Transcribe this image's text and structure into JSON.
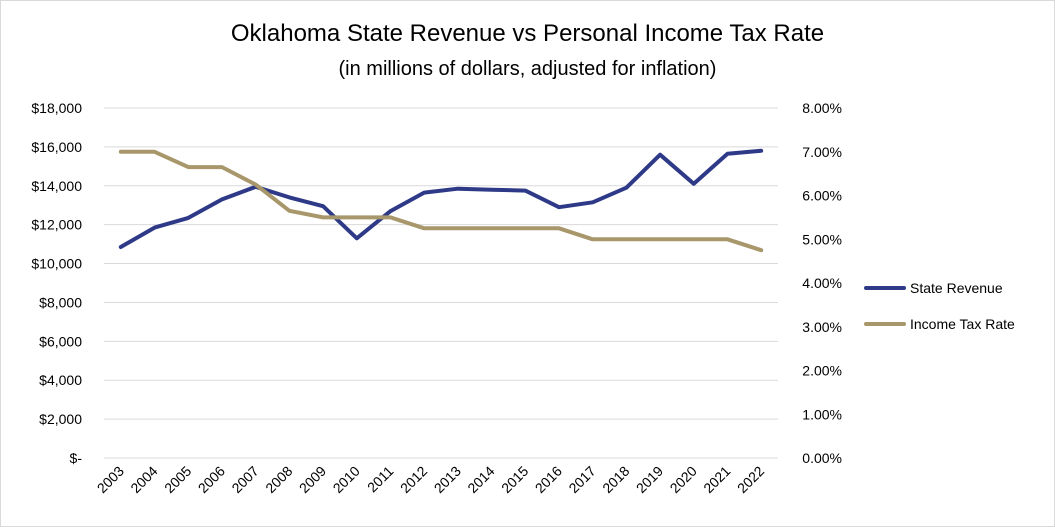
{
  "chart_data": {
    "type": "line",
    "title": "Oklahoma State Revenue vs Personal Income Tax Rate",
    "subtitle": "(in millions of dollars, adjusted for inflation)",
    "categories": [
      "2003",
      "2004",
      "2005",
      "2006",
      "2007",
      "2008",
      "2009",
      "2010",
      "2011",
      "2012",
      "2013",
      "2014",
      "2015",
      "2016",
      "2017",
      "2018",
      "2019",
      "2020",
      "2021",
      "2022"
    ],
    "series": [
      {
        "name": "State Revenue",
        "axis": "left",
        "color": "#2e3a87",
        "values": [
          10850,
          11850,
          12350,
          13300,
          13950,
          13400,
          12950,
          11300,
          12700,
          13650,
          13850,
          13800,
          13750,
          12900,
          13150,
          13900,
          15600,
          14100,
          15650,
          15800
        ]
      },
      {
        "name": "Income Tax Rate",
        "axis": "right",
        "color": "#a8976a",
        "values": [
          7.0,
          7.0,
          6.65,
          6.65,
          6.25,
          5.65,
          5.5,
          5.5,
          5.5,
          5.25,
          5.25,
          5.25,
          5.25,
          5.25,
          5.0,
          5.0,
          5.0,
          5.0,
          5.0,
          4.75
        ]
      }
    ],
    "y_left": {
      "ylim": [
        0,
        18000
      ],
      "tick_labels": [
        "$-",
        "$2,000",
        "$4,000",
        "$6,000",
        "$8,000",
        "$10,000",
        "$12,000",
        "$14,000",
        "$16,000",
        "$18,000"
      ]
    },
    "y_right": {
      "ylim": [
        0,
        8
      ],
      "tick_labels": [
        "0.00%",
        "1.00%",
        "2.00%",
        "3.00%",
        "4.00%",
        "5.00%",
        "6.00%",
        "7.00%",
        "8.00%"
      ]
    },
    "grid": true,
    "legend_position": "right"
  }
}
